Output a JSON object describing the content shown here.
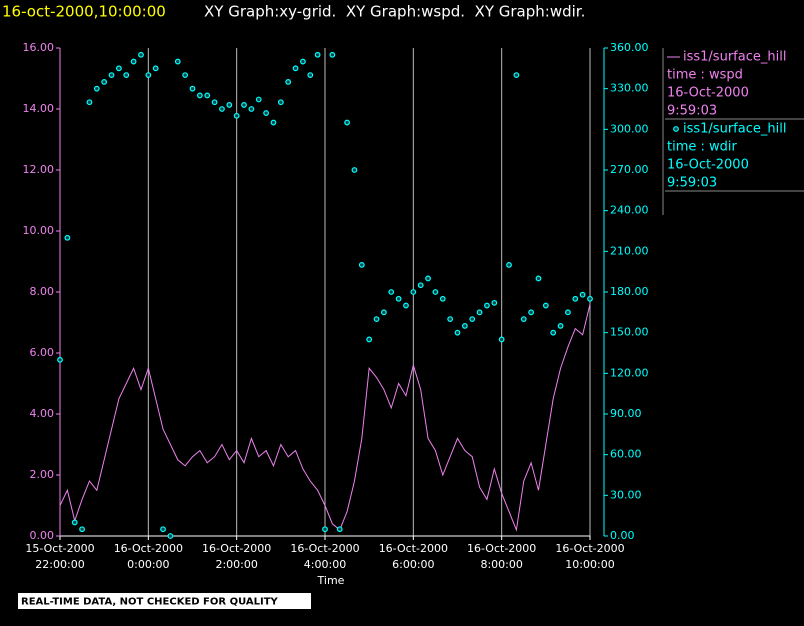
{
  "chart_data": {
    "type": "line",
    "title": "16-oct-2000,10:00:00",
    "subtitle": "XY Graph:xy-grid.  XY Graph:wspd.  XY Graph:wdir.",
    "x_label": "Time",
    "note": "REAL-TIME DATA, NOT CHECKED FOR QUALITY",
    "grid": "x",
    "xlim": [
      "2000-10-15T22:00",
      "2000-10-16T10:00"
    ],
    "xticks": [
      {
        "value": "2000-10-15T22:00",
        "label": [
          "15-Oct-2000",
          "22:00:00"
        ]
      },
      {
        "value": "2000-10-16T00:00",
        "label": [
          "16-Oct-2000",
          "0:00:00"
        ]
      },
      {
        "value": "2000-10-16T02:00",
        "label": [
          "16-Oct-2000",
          "2:00:00"
        ]
      },
      {
        "value": "2000-10-16T04:00",
        "label": [
          "16-Oct-2000",
          "4:00:00"
        ]
      },
      {
        "value": "2000-10-16T06:00",
        "label": [
          "16-Oct-2000",
          "6:00:00"
        ]
      },
      {
        "value": "2000-10-16T08:00",
        "label": [
          "16-Oct-2000",
          "8:00:00"
        ]
      },
      {
        "value": "2000-10-16T10:00",
        "label": [
          "16-Oct-2000",
          "10:00:00"
        ]
      }
    ],
    "ylim": [
      0,
      16
    ],
    "yticks": [
      {
        "value": 0,
        "label": "0.00"
      },
      {
        "value": 2,
        "label": "2.00"
      },
      {
        "value": 4,
        "label": "4.00"
      },
      {
        "value": 6,
        "label": "6.00"
      },
      {
        "value": 8,
        "label": "8.00"
      },
      {
        "value": 10,
        "label": "10.00"
      },
      {
        "value": 12,
        "label": "12.00"
      },
      {
        "value": 14,
        "label": "14.00"
      },
      {
        "value": 16,
        "label": "16.00"
      }
    ],
    "y2lim": [
      0,
      360
    ],
    "y2ticks": [
      {
        "value": 0,
        "label": "0.00"
      },
      {
        "value": 30,
        "label": "30.00"
      },
      {
        "value": 60,
        "label": "60.00"
      },
      {
        "value": 90,
        "label": "90.00"
      },
      {
        "value": 120,
        "label": "120.00"
      },
      {
        "value": 150,
        "label": "150.00"
      },
      {
        "value": 180,
        "label": "180.00"
      },
      {
        "value": 210,
        "label": "210.00"
      },
      {
        "value": 240,
        "label": "240.00"
      },
      {
        "value": 270,
        "label": "270.00"
      },
      {
        "value": 300,
        "label": "300.00"
      },
      {
        "value": 330,
        "label": "330.00"
      },
      {
        "value": 360,
        "label": "360.00"
      }
    ],
    "x": [
      "2000-10-15T22:00",
      "2000-10-15T22:10",
      "2000-10-15T22:20",
      "2000-10-15T22:30",
      "2000-10-15T22:40",
      "2000-10-15T22:50",
      "2000-10-15T23:00",
      "2000-10-15T23:10",
      "2000-10-15T23:20",
      "2000-10-15T23:30",
      "2000-10-15T23:40",
      "2000-10-15T23:50",
      "2000-10-16T00:00",
      "2000-10-16T00:10",
      "2000-10-16T00:20",
      "2000-10-16T00:30",
      "2000-10-16T00:40",
      "2000-10-16T00:50",
      "2000-10-16T01:00",
      "2000-10-16T01:10",
      "2000-10-16T01:20",
      "2000-10-16T01:30",
      "2000-10-16T01:40",
      "2000-10-16T01:50",
      "2000-10-16T02:00",
      "2000-10-16T02:10",
      "2000-10-16T02:20",
      "2000-10-16T02:30",
      "2000-10-16T02:40",
      "2000-10-16T02:50",
      "2000-10-16T03:00",
      "2000-10-16T03:10",
      "2000-10-16T03:20",
      "2000-10-16T03:30",
      "2000-10-16T03:40",
      "2000-10-16T03:50",
      "2000-10-16T04:00",
      "2000-10-16T04:10",
      "2000-10-16T04:20",
      "2000-10-16T04:30",
      "2000-10-16T04:40",
      "2000-10-16T04:50",
      "2000-10-16T05:00",
      "2000-10-16T05:10",
      "2000-10-16T05:20",
      "2000-10-16T05:30",
      "2000-10-16T05:40",
      "2000-10-16T05:50",
      "2000-10-16T06:00",
      "2000-10-16T06:10",
      "2000-10-16T06:20",
      "2000-10-16T06:30",
      "2000-10-16T06:40",
      "2000-10-16T06:50",
      "2000-10-16T07:00",
      "2000-10-16T07:10",
      "2000-10-16T07:20",
      "2000-10-16T07:30",
      "2000-10-16T07:40",
      "2000-10-16T07:50",
      "2000-10-16T08:00",
      "2000-10-16T08:10",
      "2000-10-16T08:20",
      "2000-10-16T08:30",
      "2000-10-16T08:40",
      "2000-10-16T08:50",
      "2000-10-16T09:00",
      "2000-10-16T09:10",
      "2000-10-16T09:20",
      "2000-10-16T09:30",
      "2000-10-16T09:40",
      "2000-10-16T09:50",
      "2000-10-16T10:00"
    ],
    "series": [
      {
        "name": "iss1/surface_hill",
        "legend_lines": [
          "time : wspd",
          "16-Oct-2000",
          "9:59:03"
        ],
        "color": "#ee82ee",
        "marker": "line",
        "values": [
          1.0,
          1.5,
          0.5,
          1.2,
          1.8,
          1.5,
          2.5,
          3.5,
          4.5,
          5.0,
          5.5,
          4.8,
          5.5,
          4.5,
          3.5,
          3.0,
          2.5,
          2.3,
          2.6,
          2.8,
          2.4,
          2.6,
          3.0,
          2.5,
          2.8,
          2.4,
          3.2,
          2.6,
          2.8,
          2.3,
          3.0,
          2.6,
          2.8,
          2.2,
          1.8,
          1.5,
          1.0,
          0.4,
          0.2,
          0.8,
          1.8,
          3.2,
          5.5,
          5.2,
          4.8,
          4.2,
          5.0,
          4.6,
          5.6,
          4.8,
          3.2,
          2.8,
          2.0,
          2.6,
          3.2,
          2.8,
          2.6,
          1.6,
          1.2,
          2.2,
          1.4,
          0.8,
          0.2,
          1.8,
          2.4,
          1.5,
          3.0,
          4.5,
          5.5,
          6.2,
          6.8,
          6.6,
          7.6
        ]
      },
      {
        "name": "iss1/surface_hill",
        "legend_lines": [
          "time : wdir",
          "16-Oct-2000",
          "9:59:03"
        ],
        "color": "#00ffff",
        "marker": "circle",
        "axis": "y2",
        "values": [
          130,
          220,
          10,
          5,
          320,
          330,
          335,
          340,
          345,
          340,
          350,
          355,
          340,
          345,
          5,
          0,
          350,
          340,
          330,
          325,
          325,
          320,
          315,
          318,
          310,
          318,
          315,
          322,
          312,
          305,
          320,
          335,
          345,
          350,
          340,
          355,
          5,
          355,
          5,
          305,
          270,
          200,
          145,
          160,
          165,
          180,
          175,
          170,
          180,
          185,
          190,
          180,
          175,
          160,
          150,
          155,
          160,
          165,
          170,
          172,
          145,
          200,
          340,
          160,
          165,
          190,
          170,
          150,
          155,
          165,
          175,
          178,
          175
        ]
      }
    ]
  }
}
